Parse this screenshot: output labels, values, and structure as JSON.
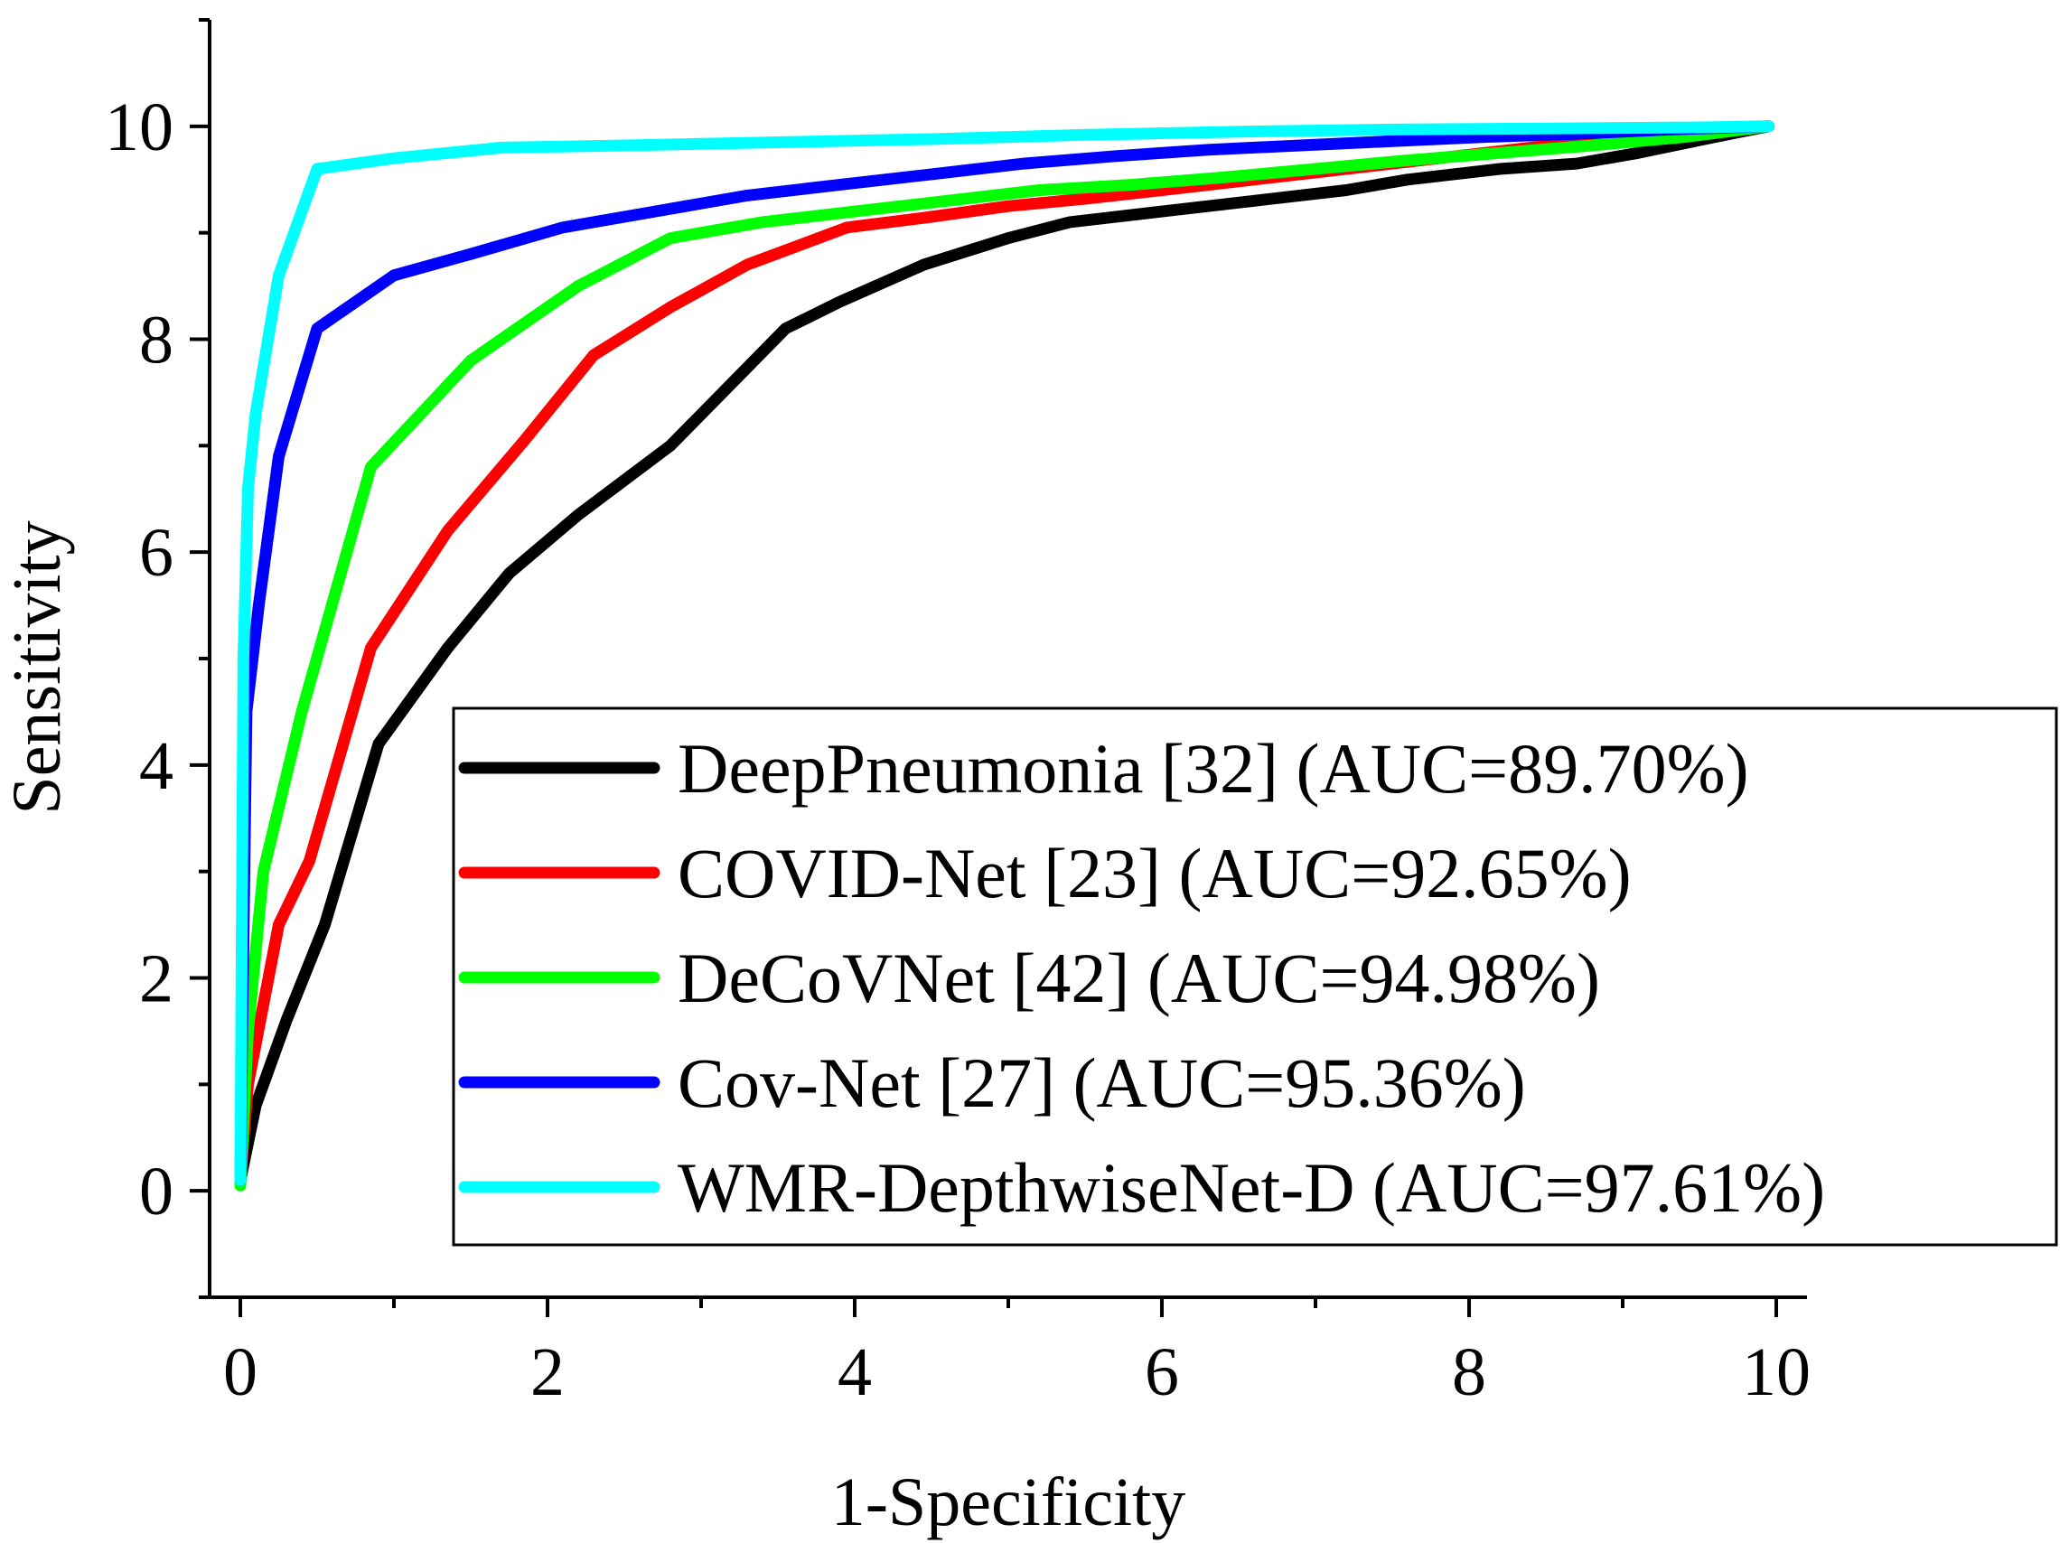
{
  "chart_data": {
    "type": "line",
    "title": "",
    "xlabel": "1-Specificity",
    "ylabel": "Sensitivity",
    "xlim": [
      -0.2,
      10.2
    ],
    "ylim": [
      -1,
      11
    ],
    "xticks": [
      "0",
      "2",
      "4",
      "6",
      "8",
      "10"
    ],
    "yticks": [
      "0",
      "2",
      "4",
      "6",
      "8",
      "10"
    ],
    "grid": false,
    "legend_position": "bottom-right",
    "series": [
      {
        "name": "DeepPneumonia [32] (AUC=89.70%)",
        "color": "#000000",
        "x": [
          0.0,
          0.1,
          0.3,
          0.55,
          0.9,
          1.35,
          1.75,
          2.2,
          2.8,
          3.55,
          3.9,
          4.45,
          5.0,
          5.4,
          6.0,
          6.6,
          7.2,
          7.6,
          8.2,
          8.7,
          9.1,
          9.6,
          9.95
        ],
        "y": [
          0.1,
          0.8,
          1.6,
          2.5,
          4.2,
          5.1,
          5.8,
          6.35,
          7.0,
          8.1,
          8.35,
          8.7,
          8.95,
          9.1,
          9.2,
          9.3,
          9.4,
          9.5,
          9.6,
          9.65,
          9.75,
          9.9,
          10.0
        ]
      },
      {
        "name": "COVID-Net [23] (AUC=92.65%)",
        "color": "#ff0000",
        "x": [
          0.0,
          0.05,
          0.25,
          0.45,
          0.85,
          1.35,
          1.85,
          2.3,
          2.8,
          3.3,
          3.95,
          4.5,
          5.0,
          5.5,
          6.0,
          6.6,
          7.2,
          7.8,
          8.4,
          9.0,
          9.5,
          9.95
        ],
        "y": [
          0.1,
          1.0,
          2.5,
          3.1,
          5.1,
          6.2,
          7.05,
          7.85,
          8.3,
          8.7,
          9.05,
          9.15,
          9.25,
          9.32,
          9.4,
          9.5,
          9.6,
          9.7,
          9.8,
          9.88,
          9.95,
          10.0
        ]
      },
      {
        "name": "DeCoVNet [42] (AUC=94.98%)",
        "color": "#00ff00",
        "x": [
          0.0,
          0.05,
          0.15,
          0.4,
          0.85,
          1.5,
          2.2,
          2.8,
          3.4,
          4.0,
          4.6,
          5.2,
          5.8,
          6.4,
          7.0,
          7.6,
          8.2,
          8.8,
          9.4,
          9.95
        ],
        "y": [
          0.05,
          1.5,
          3.0,
          4.5,
          6.8,
          7.8,
          8.5,
          8.95,
          9.1,
          9.2,
          9.3,
          9.4,
          9.45,
          9.52,
          9.6,
          9.68,
          9.75,
          9.82,
          9.9,
          10.0
        ]
      },
      {
        "name": "Cov-Net [27] (AUC=95.36%)",
        "color": "#0000ff",
        "x": [
          0.0,
          0.04,
          0.12,
          0.25,
          0.5,
          1.0,
          1.5,
          2.1,
          2.7,
          3.3,
          3.9,
          4.5,
          5.1,
          5.7,
          6.3,
          6.9,
          7.5,
          8.1,
          8.7,
          9.3,
          9.95
        ],
        "y": [
          0.1,
          4.5,
          5.5,
          6.9,
          8.1,
          8.6,
          8.8,
          9.05,
          9.2,
          9.35,
          9.45,
          9.55,
          9.65,
          9.72,
          9.78,
          9.82,
          9.86,
          9.9,
          9.93,
          9.97,
          10.0
        ]
      },
      {
        "name": "WMR-DepthwiseNet-D (AUC=97.61%)",
        "color": "#00ffff",
        "x": [
          0.0,
          0.02,
          0.05,
          0.1,
          0.25,
          0.5,
          1.0,
          1.7,
          2.5,
          3.5,
          4.5,
          5.5,
          6.5,
          7.5,
          8.5,
          9.5,
          9.95
        ],
        "y": [
          0.1,
          5.0,
          6.6,
          7.3,
          8.6,
          9.6,
          9.7,
          9.8,
          9.82,
          9.85,
          9.88,
          9.92,
          9.95,
          9.97,
          9.98,
          9.99,
          10.0
        ]
      }
    ]
  }
}
